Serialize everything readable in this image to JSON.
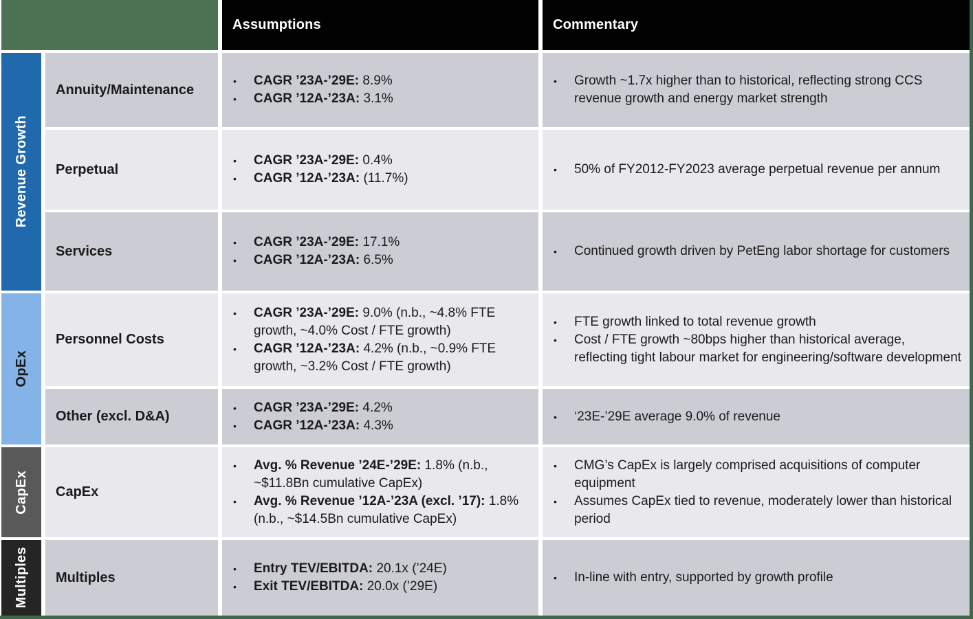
{
  "header": {
    "assumptions": "Assumptions",
    "commentary": "Commentary"
  },
  "colors": {
    "corner_green": "#4C7254",
    "border_green": "#3E6849",
    "header_black": "#010101",
    "row_dark": "#cbccd4",
    "row_light": "#e8e8ed",
    "revenue_growth_blue": "#2069AD",
    "opex_light_blue": "#83B3E7",
    "capex_gray": "#595959",
    "multiples_black": "#252525"
  },
  "groups": [
    {
      "label": "Revenue Growth",
      "bg": "#2069AD",
      "fg": "#ffffff",
      "row_count": 3
    },
    {
      "label": "OpEx",
      "bg": "#83B3E7",
      "fg": "#1a1a1a",
      "row_count": 2
    },
    {
      "label": "CapEx",
      "bg": "#595959",
      "fg": "#ffffff",
      "row_count": 1
    },
    {
      "label": "Multiples",
      "bg": "#252525",
      "fg": "#ffffff",
      "row_count": 1
    }
  ],
  "rows": [
    {
      "label": "Annuity/Maintenance",
      "assumptions": [
        {
          "bold": "CAGR ’23A-’29E:",
          "value": "8.9%"
        },
        {
          "bold": "CAGR ’12A-’23A:",
          "value": "3.1%"
        }
      ],
      "commentary": [
        {
          "text": "Growth ~1.7x higher than to historical, reflecting strong CCS revenue growth and energy market strength"
        }
      ]
    },
    {
      "label": "Perpetual",
      "assumptions": [
        {
          "bold": "CAGR ’23A-’29E:",
          "value": "0.4%"
        },
        {
          "bold": "CAGR ’12A-’23A:",
          "value": "(11.7%)"
        }
      ],
      "commentary": [
        {
          "text": "50% of FY2012-FY2023 average perpetual revenue per annum"
        }
      ]
    },
    {
      "label": "Services",
      "assumptions": [
        {
          "bold": "CAGR ’23A-’29E:",
          "value": "17.1%"
        },
        {
          "bold": "CAGR ’12A-’23A:",
          "value": "6.5%"
        }
      ],
      "commentary": [
        {
          "text": "Continued growth driven by PetEng labor shortage for customers"
        }
      ]
    },
    {
      "label": "Personnel Costs",
      "assumptions": [
        {
          "bold": "CAGR ’23A-’29E:",
          "value": "9.0% (n.b., ~4.8% FTE growth, ~4.0% Cost / FTE growth)"
        },
        {
          "bold": "CAGR ’12A-’23A:",
          "value": "4.2% (n.b., ~0.9% FTE growth, ~3.2% Cost / FTE growth)"
        }
      ],
      "commentary": [
        {
          "text": "FTE growth linked to total revenue growth"
        },
        {
          "text": "Cost / FTE growth ~80bps higher than historical average, reflecting tight labour market for engineering/software development"
        }
      ]
    },
    {
      "label": "Other (excl. D&A)",
      "assumptions": [
        {
          "bold": "CAGR ’23A-’29E:",
          "value": "4.2%"
        },
        {
          "bold": "CAGR ’12A-’23A:",
          "value": "4.3%"
        }
      ],
      "commentary": [
        {
          "text": "‘23E-’29E average 9.0% of revenue"
        }
      ]
    },
    {
      "label": "CapEx",
      "assumptions": [
        {
          "bold": "Avg. % Revenue ’24E-’29E:",
          "value": "1.8% (n.b., ~$11.8Bn cumulative CapEx)"
        },
        {
          "bold": "Avg. % Revenue ’12A-’23A (excl. ’17):",
          "value": "1.8% (n.b., ~$14.5Bn cumulative CapEx)"
        }
      ],
      "commentary": [
        {
          "text": "CMG’s CapEx is largely comprised acquisitions of computer equipment"
        },
        {
          "text": "Assumes CapEx tied to revenue, moderately lower than historical period"
        }
      ]
    },
    {
      "label": "Multiples",
      "assumptions": [
        {
          "bold": "Entry TEV/EBITDA:",
          "value": "20.1x (’24E)"
        },
        {
          "bold": "Exit TEV/EBITDA:",
          "value": "20.0x (’29E)"
        }
      ],
      "commentary": [
        {
          "text": "In-line with entry, supported by growth profile"
        }
      ]
    }
  ]
}
